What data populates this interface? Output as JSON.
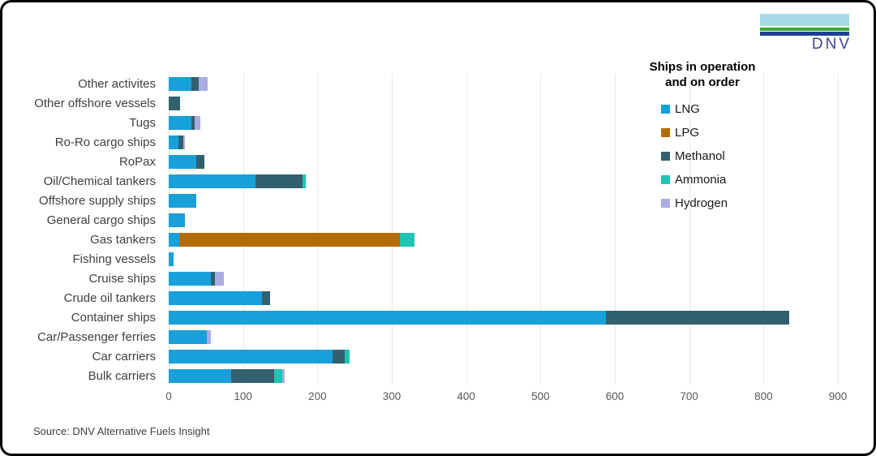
{
  "logo": {
    "text": "DNV"
  },
  "legend": {
    "title_line1": "Ships in operation",
    "title_line2": "and on order"
  },
  "source": {
    "text": "Source: DNV Alternative Fuels Insight"
  },
  "colors": {
    "grid": "#E8E8E8",
    "tick_text": "#595959",
    "category_text": "#3F3F3F"
  },
  "chart_data": {
    "type": "bar",
    "orientation": "horizontal",
    "stacked": true,
    "title": "Ships in operation and on order",
    "xlabel": "",
    "ylabel": "",
    "xlim": [
      0,
      900
    ],
    "xticks": [
      0,
      100,
      200,
      300,
      400,
      500,
      600,
      700,
      800,
      900
    ],
    "grid": "vertical",
    "legend_position": "right-overlay",
    "categories": [
      "Other activites",
      "Other offshore vessels",
      "Tugs",
      "Ro-Ro cargo ships",
      "RoPax",
      "Oil/Chemical tankers",
      "Offshore supply ships",
      "General cargo ships",
      "Gas tankers",
      "Fishing vessels",
      "Cruise ships",
      "Crude oil tankers",
      "Container ships",
      "Car/Passenger ferries",
      "Car carriers",
      "Bulk carriers"
    ],
    "series": [
      {
        "name": "LNG",
        "color": "#18A0DB",
        "values": [
          31,
          0,
          31,
          13,
          37,
          117,
          37,
          22,
          15,
          7,
          57,
          125,
          588,
          51,
          220,
          84
        ]
      },
      {
        "name": "LPG",
        "color": "#B36B05",
        "values": [
          0,
          0,
          0,
          0,
          0,
          0,
          0,
          0,
          296,
          0,
          0,
          0,
          0,
          0,
          0,
          0
        ]
      },
      {
        "name": "Methanol",
        "color": "#31616F",
        "values": [
          9,
          15,
          4,
          7,
          11,
          63,
          0,
          0,
          0,
          0,
          5,
          11,
          247,
          0,
          17,
          58
        ]
      },
      {
        "name": "Ammonia",
        "color": "#20C3B4",
        "values": [
          0,
          0,
          0,
          0,
          0,
          4,
          0,
          0,
          20,
          0,
          0,
          0,
          0,
          0,
          6,
          11
        ]
      },
      {
        "name": "Hydrogen",
        "color": "#ABACE3",
        "values": [
          12,
          0,
          8,
          2,
          0,
          0,
          0,
          0,
          0,
          0,
          12,
          0,
          0,
          6,
          0,
          3
        ]
      }
    ]
  }
}
